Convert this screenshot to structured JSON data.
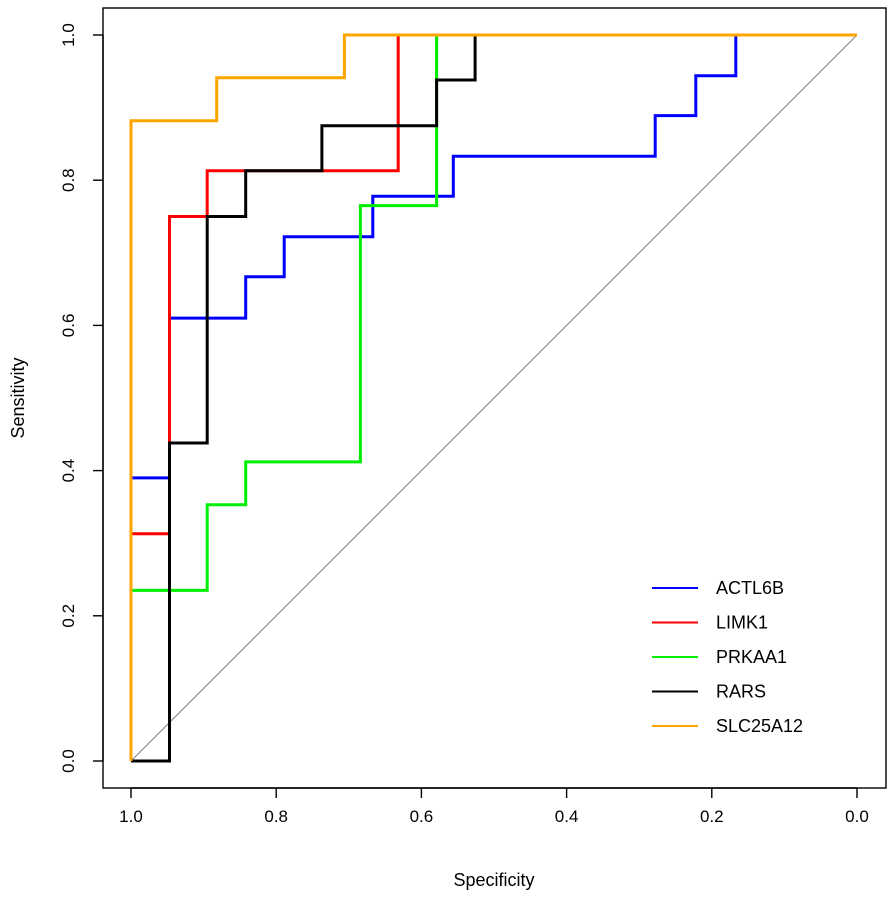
{
  "chart_data": {
    "type": "line",
    "title": "",
    "xlabel": "Specificity",
    "ylabel": "Sensitivity",
    "xlim": [
      1.0,
      0.0
    ],
    "ylim": [
      0.0,
      1.0
    ],
    "x_reversed": true,
    "grid": false,
    "legend_position": "bottom-right",
    "x_ticks": [
      "1.0",
      "0.8",
      "0.6",
      "0.4",
      "0.2",
      "0.0"
    ],
    "x_tick_values": [
      1.0,
      0.8,
      0.6,
      0.4,
      0.2,
      0.0
    ],
    "y_ticks": [
      "0.0",
      "0.2",
      "0.4",
      "0.6",
      "0.8",
      "1.0"
    ],
    "y_tick_values": [
      0.0,
      0.2,
      0.4,
      0.6,
      0.8,
      1.0
    ],
    "reference_line": {
      "x": [
        1.0,
        0.0
      ],
      "y": [
        0.0,
        1.0
      ],
      "color": "#808080"
    },
    "series": [
      {
        "name": "ACTL6B",
        "color": "#0000FF",
        "x": [
          1.0,
          1.0,
          0.947,
          0.947,
          0.947,
          0.842,
          0.842,
          0.789,
          0.789,
          0.667,
          0.667,
          0.556,
          0.556,
          0.278,
          0.278,
          0.222,
          0.222,
          0.167,
          0.167,
          0.0
        ],
        "y": [
          0.0,
          0.39,
          0.39,
          0.61,
          0.61,
          0.61,
          0.667,
          0.667,
          0.722,
          0.722,
          0.778,
          0.778,
          0.833,
          0.833,
          0.889,
          0.889,
          0.944,
          0.944,
          1.0,
          1.0
        ]
      },
      {
        "name": "LIMK1",
        "color": "#FF0000",
        "x": [
          1.0,
          1.0,
          0.947,
          0.947,
          0.895,
          0.895,
          0.632,
          0.632,
          0.632,
          0.0
        ],
        "y": [
          0.0,
          0.313,
          0.313,
          0.75,
          0.75,
          0.813,
          0.813,
          0.875,
          1.0,
          1.0
        ]
      },
      {
        "name": "PRKAA1",
        "color": "#00EE00",
        "x": [
          1.0,
          1.0,
          0.895,
          0.895,
          0.842,
          0.842,
          0.684,
          0.684,
          0.579,
          0.579,
          0.0
        ],
        "y": [
          0.0,
          0.235,
          0.235,
          0.353,
          0.353,
          0.412,
          0.412,
          0.765,
          0.765,
          1.0,
          1.0
        ]
      },
      {
        "name": "RARS",
        "color": "#000000",
        "x": [
          1.0,
          0.947,
          0.947,
          0.895,
          0.895,
          0.842,
          0.842,
          0.737,
          0.737,
          0.579,
          0.579,
          0.526,
          0.526,
          0.0
        ],
        "y": [
          0.0,
          0.0,
          0.438,
          0.438,
          0.75,
          0.75,
          0.813,
          0.813,
          0.875,
          0.875,
          0.938,
          0.938,
          1.0,
          1.0
        ]
      },
      {
        "name": "SLC25A12",
        "color": "#FFA500",
        "x": [
          1.0,
          1.0,
          0.882,
          0.882,
          0.706,
          0.706,
          0.0
        ],
        "y": [
          0.0,
          0.882,
          0.882,
          0.941,
          0.941,
          1.0,
          1.0
        ]
      }
    ]
  }
}
